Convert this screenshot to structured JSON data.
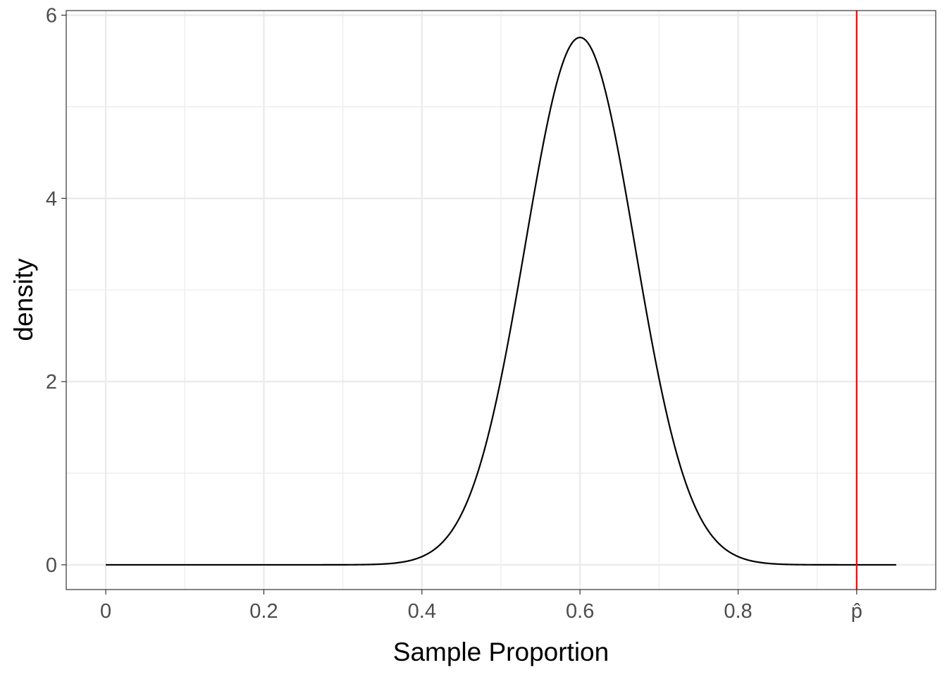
{
  "chart_data": {
    "type": "line",
    "title": "",
    "xlabel": "Sample Proportion",
    "ylabel": "density",
    "xlim": [
      -0.05,
      1.05
    ],
    "ylim": [
      -0.27,
      6.05
    ],
    "x_ticks": [
      {
        "value": 0,
        "label": "0"
      },
      {
        "value": 0.2,
        "label": "0.2"
      },
      {
        "value": 0.4,
        "label": "0.4"
      },
      {
        "value": 0.6,
        "label": "0.6"
      },
      {
        "value": 0.8,
        "label": "0.8"
      },
      {
        "value": 0.95,
        "label": "p̂"
      }
    ],
    "x_minor_gridlines": [
      0.1,
      0.3,
      0.5,
      0.7,
      0.9
    ],
    "y_ticks": [
      {
        "value": 0,
        "label": "0"
      },
      {
        "value": 2,
        "label": "2"
      },
      {
        "value": 4,
        "label": "4"
      },
      {
        "value": 6,
        "label": "6"
      }
    ],
    "y_minor_gridlines": [
      1,
      3,
      5
    ],
    "grid": true,
    "series": [
      {
        "type": "normal_density",
        "mean": 0.6,
        "sd": 0.0693,
        "x_range": [
          0,
          1
        ],
        "color": "#000000"
      }
    ],
    "annotations": [
      {
        "type": "vline",
        "x": 0.95,
        "color": "#ff0000"
      }
    ]
  }
}
